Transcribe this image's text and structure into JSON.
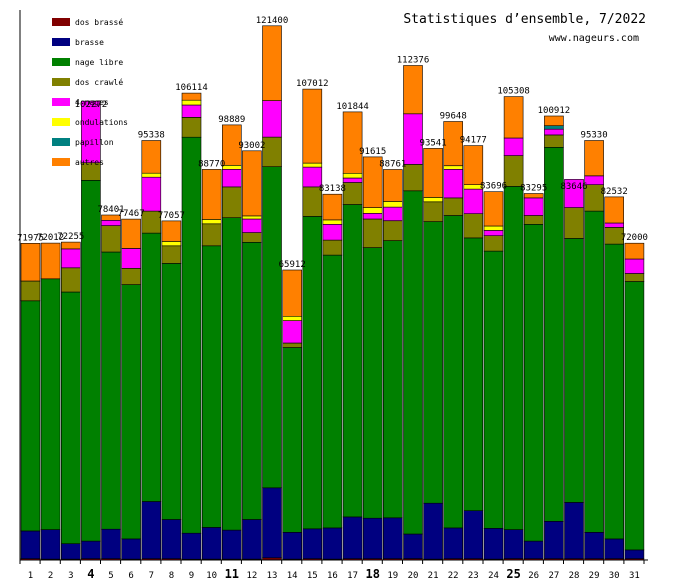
{
  "title": "Statistiques d’ensemble, 7/2022",
  "subtitle": "www.nageurs.com",
  "chart_data": {
    "type": "bar",
    "stacked": true,
    "ylim": [
      0,
      125000
    ],
    "categories": [
      "1",
      "2",
      "3",
      "4",
      "5",
      "6",
      "7",
      "8",
      "9",
      "10",
      "11",
      "12",
      "13",
      "14",
      "15",
      "16",
      "17",
      "18",
      "19",
      "20",
      "21",
      "22",
      "23",
      "24",
      "25",
      "26",
      "27",
      "28",
      "29",
      "30",
      "31"
    ],
    "bold_categories": [
      "4",
      "11",
      "18",
      "25"
    ],
    "totals": [
      71975,
      72012,
      72255,
      102272,
      78401,
      77467,
      95338,
      77057,
      106114,
      88770,
      98889,
      93002,
      121400,
      65912,
      107012,
      83138,
      101844,
      91615,
      88761,
      112376,
      93541,
      99648,
      94177,
      83696,
      105308,
      83295,
      100912,
      83646,
      95330,
      82532,
      72000
    ],
    "total_labels": [
      "71975",
      "72012",
      "72255",
      "102272",
      "78401",
      "77467",
      "95338",
      "77057",
      "106114",
      "88770",
      "98889",
      "93002",
      "121400",
      "65912",
      "107012",
      "83138",
      "101844",
      "91615",
      "88761",
      "112376",
      "93541",
      "99648",
      "94177",
      "83696",
      "105308",
      "83295",
      "100912",
      "83646",
      "95330",
      "82532",
      "72000"
    ],
    "series": [
      {
        "name": "dos brassé",
        "color": "#800000",
        "values": [
          300,
          200,
          200,
          300,
          300,
          200,
          300,
          300,
          200,
          200,
          200,
          200,
          500,
          200,
          300,
          200,
          300,
          300,
          300,
          300,
          200,
          300,
          300,
          200,
          300,
          300,
          300,
          300,
          300,
          300,
          300
        ]
      },
      {
        "name": "brasse",
        "color": "#000080",
        "values": [
          6300,
          6700,
          3500,
          4000,
          6700,
          4600,
          13000,
          8900,
          5900,
          7200,
          6600,
          9000,
          15900,
          6100,
          6800,
          7100,
          9500,
          9200,
          9300,
          5600,
          12700,
          7000,
          10900,
          7000,
          6600,
          4000,
          8500,
          12800,
          6000,
          4500,
          2000
        ]
      },
      {
        "name": "nage libre",
        "color": "#008000",
        "values": [
          52300,
          57000,
          57200,
          82000,
          63000,
          57800,
          61000,
          58200,
          90000,
          64000,
          71000,
          63000,
          73000,
          42000,
          71000,
          62000,
          71000,
          61500,
          63000,
          78000,
          64000,
          71000,
          62000,
          63000,
          78000,
          72000,
          85000,
          60000,
          73000,
          67000,
          61000
        ]
      },
      {
        "name": "dos crawlé",
        "color": "#808000",
        "values": [
          4500,
          0,
          5500,
          4000,
          6000,
          3700,
          5000,
          4000,
          4500,
          5000,
          7000,
          2200,
          6700,
          1000,
          6700,
          3400,
          5000,
          6500,
          4500,
          6000,
          4500,
          4000,
          5500,
          3500,
          7000,
          2000,
          2800,
          7000,
          6000,
          3800,
          1800
        ]
      },
      {
        "name": "4 nages",
        "color": "#ff00ff",
        "values": [
          0,
          0,
          4300,
          14000,
          1200,
          4500,
          7700,
          0,
          2800,
          0,
          4000,
          3100,
          8300,
          5100,
          4500,
          3600,
          1000,
          1300,
          3100,
          11500,
          0,
          6500,
          5600,
          1200,
          4000,
          4000,
          1300,
          6400,
          2000,
          1000,
          3300
        ]
      },
      {
        "name": "ondulations",
        "color": "#ffff00",
        "values": [
          0,
          0,
          0,
          0,
          0,
          0,
          900,
          1000,
          1100,
          1000,
          900,
          700,
          0,
          1000,
          900,
          1000,
          1100,
          1300,
          1300,
          0,
          1000,
          800,
          1000,
          1000,
          0,
          0,
          0,
          0,
          0,
          0,
          0
        ]
      },
      {
        "name": "papillon",
        "color": "#008080",
        "values": [
          0,
          0,
          0,
          0,
          0,
          0,
          0,
          0,
          0,
          0,
          0,
          0,
          0,
          0,
          0,
          0,
          0,
          0,
          0,
          0,
          0,
          0,
          0,
          0,
          0,
          0,
          800,
          0,
          0,
          0,
          0
        ]
      },
      {
        "name": "autres",
        "color": "#ff8000",
        "values": [
          8575,
          8112,
          1555,
          -2028,
          1201,
          6667,
          7438,
          4657,
          1614,
          11370,
          9189,
          14802,
          17000,
          10512,
          16812,
          5838,
          13944,
          11815,
          7261,
          10976,
          11141,
          10048,
          8877,
          7796,
          9408,
          995,
          2212,
          -2854,
          8030,
          5932,
          3600
        ]
      }
    ]
  }
}
